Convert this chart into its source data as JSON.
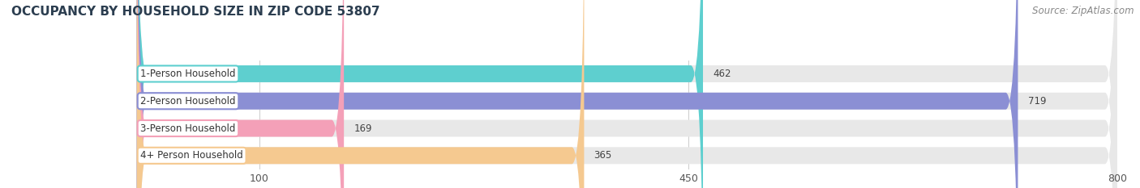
{
  "title": "OCCUPANCY BY HOUSEHOLD SIZE IN ZIP CODE 53807",
  "source": "Source: ZipAtlas.com",
  "categories": [
    "1-Person Household",
    "2-Person Household",
    "3-Person Household",
    "4+ Person Household"
  ],
  "values": [
    462,
    719,
    169,
    365
  ],
  "bar_colors": [
    "#5ecfcf",
    "#8b8fd4",
    "#f4a0b8",
    "#f5c990"
  ],
  "label_border_colors": [
    "#5ecfcf",
    "#8b8fd4",
    "#f4a0b8",
    "#f5c990"
  ],
  "background_color": "#ffffff",
  "bar_bg_color": "#e8e8e8",
  "xlim": [
    0,
    800
  ],
  "xticks": [
    100,
    450,
    800
  ],
  "bar_height": 0.62,
  "title_fontsize": 11,
  "source_fontsize": 8.5,
  "label_fontsize": 8.5,
  "value_fontsize": 8.5,
  "tick_fontsize": 9
}
